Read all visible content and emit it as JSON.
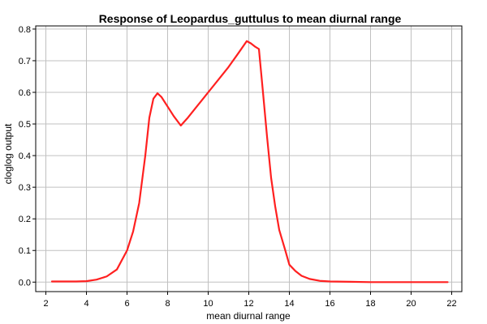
{
  "chart_data": {
    "type": "line",
    "title": "Response of Leopardus_guttulus to mean diurnal range",
    "xlabel": "mean diurnal range",
    "ylabel": "cloglog output",
    "xlim": [
      1.5,
      22.5
    ],
    "ylim": [
      -0.03,
      0.81
    ],
    "x_ticks": [
      2,
      4,
      6,
      8,
      10,
      12,
      14,
      16,
      18,
      20,
      22
    ],
    "y_ticks": [
      0.0,
      0.1,
      0.2,
      0.3,
      0.4,
      0.5,
      0.6,
      0.7,
      0.8
    ],
    "x_tick_labels": [
      "2",
      "4",
      "6",
      "8",
      "10",
      "12",
      "14",
      "16",
      "18",
      "20",
      "22"
    ],
    "y_tick_labels": [
      "0.0",
      "0.1",
      "0.2",
      "0.3",
      "0.4",
      "0.5",
      "0.6",
      "0.7",
      "0.8"
    ],
    "grid": true,
    "series": [
      {
        "color": "#ff2020",
        "x": [
          2.3,
          3.0,
          3.5,
          4.0,
          4.5,
          5.0,
          5.5,
          6.0,
          6.3,
          6.6,
          6.9,
          7.1,
          7.3,
          7.5,
          7.7,
          8.0,
          8.3,
          8.65,
          9.0,
          9.5,
          10.0,
          10.5,
          11.0,
          11.5,
          11.9,
          12.1,
          12.3,
          12.5,
          12.7,
          12.9,
          13.1,
          13.3,
          13.5,
          13.8,
          14.0,
          14.3,
          14.6,
          15.0,
          15.5,
          16.0,
          17.0,
          18.0,
          19.0,
          20.0,
          21.0,
          21.8
        ],
        "y": [
          0.002,
          0.002,
          0.002,
          0.003,
          0.008,
          0.018,
          0.04,
          0.1,
          0.16,
          0.25,
          0.4,
          0.52,
          0.58,
          0.597,
          0.585,
          0.555,
          0.525,
          0.495,
          0.52,
          0.56,
          0.6,
          0.64,
          0.68,
          0.725,
          0.762,
          0.755,
          0.745,
          0.737,
          0.6,
          0.46,
          0.33,
          0.24,
          0.165,
          0.1,
          0.055,
          0.035,
          0.02,
          0.01,
          0.004,
          0.002,
          0.001,
          0.0,
          0.0,
          0.0,
          0.0,
          0.0
        ]
      }
    ]
  }
}
